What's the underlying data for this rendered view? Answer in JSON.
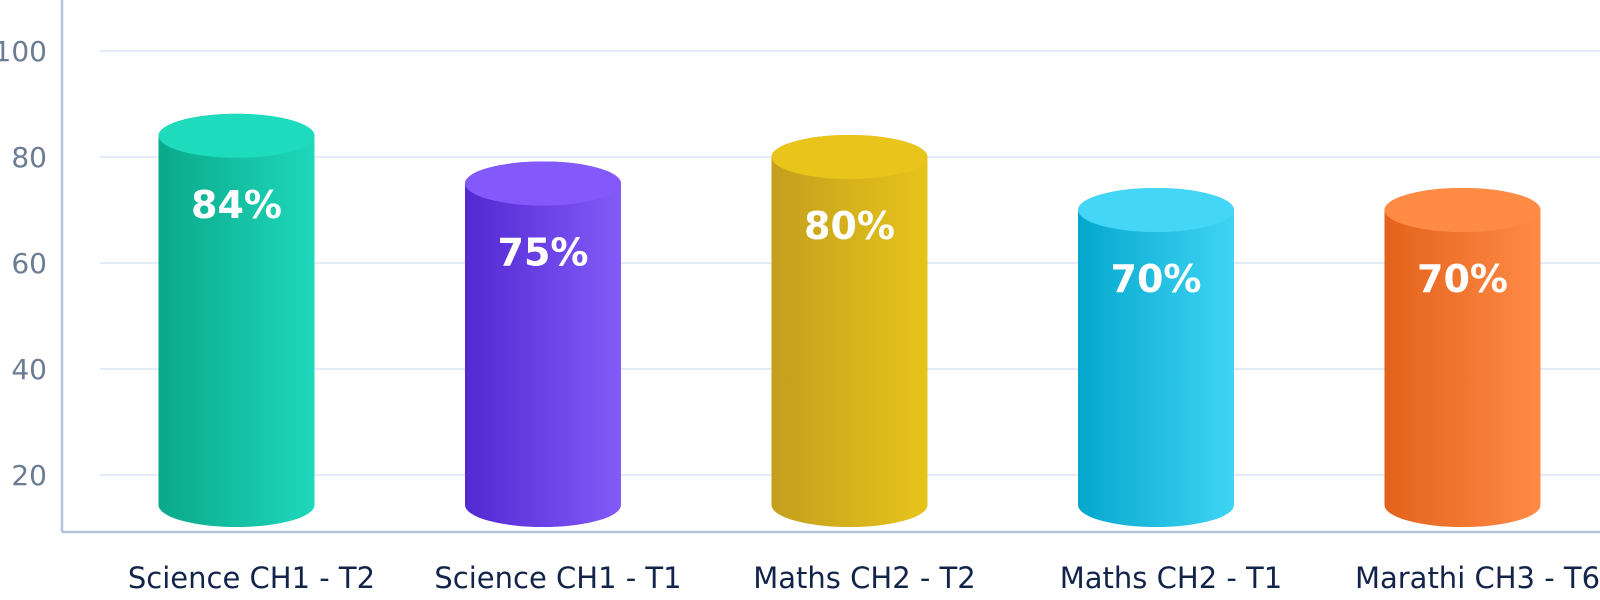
{
  "chart_data": {
    "type": "bar",
    "style": "3d-cylinder",
    "categories": [
      "Science CH1 - T2",
      "Science CH1 - T1",
      "Maths CH2 - T2",
      "Maths CH2 - T1",
      "Marathi CH3 - T6"
    ],
    "values": [
      84,
      75,
      80,
      70,
      70
    ],
    "value_labels": [
      "84%",
      "75%",
      "80%",
      "70%",
      "70%"
    ],
    "yticks": [
      20,
      40,
      60,
      80,
      100
    ],
    "ytick_labels": [
      "20",
      "40",
      "60",
      "80",
      "100"
    ],
    "ylim": [
      10,
      110
    ],
    "grid": true,
    "legend": "none",
    "colors": [
      {
        "dark": "#0aa88a",
        "light": "#1fd8bb",
        "top": "#1edbbd"
      },
      {
        "dark": "#5228d2",
        "light": "#825bf8",
        "top": "#8459fb"
      },
      {
        "dark": "#c39f1d",
        "light": "#e7c41b",
        "top": "#e9c41a"
      },
      {
        "dark": "#05a7cd",
        "light": "#3fd4f4",
        "top": "#44d6f6"
      },
      {
        "dark": "#e3621b",
        "light": "#ff8b47",
        "top": "#ff8b45"
      }
    ]
  }
}
